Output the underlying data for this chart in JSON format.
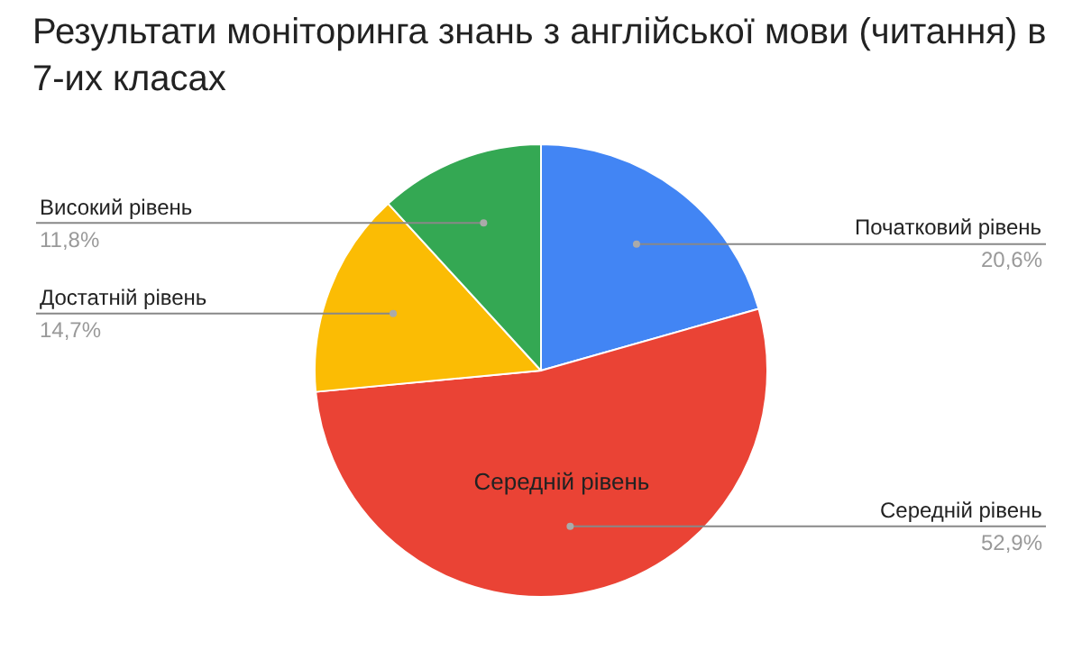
{
  "chart_data": {
    "type": "pie",
    "title": "Результати моніторинга знань з англійської мови (читання) в 7-их класах",
    "categories": [
      "Початковий рівень",
      "Середній рівень",
      "Достатній рівень",
      "Високий рівень"
    ],
    "values": [
      20.6,
      52.9,
      14.7,
      11.8
    ],
    "value_labels": [
      "20,6%",
      "52,9%",
      "14,7%",
      "11,8%"
    ],
    "colors": [
      "#4285f4",
      "#ea4335",
      "#fbbc04",
      "#34a853"
    ],
    "annotations": [
      {
        "text": "Середній рівень",
        "x": "Середній рівень"
      }
    ],
    "legend": false
  }
}
